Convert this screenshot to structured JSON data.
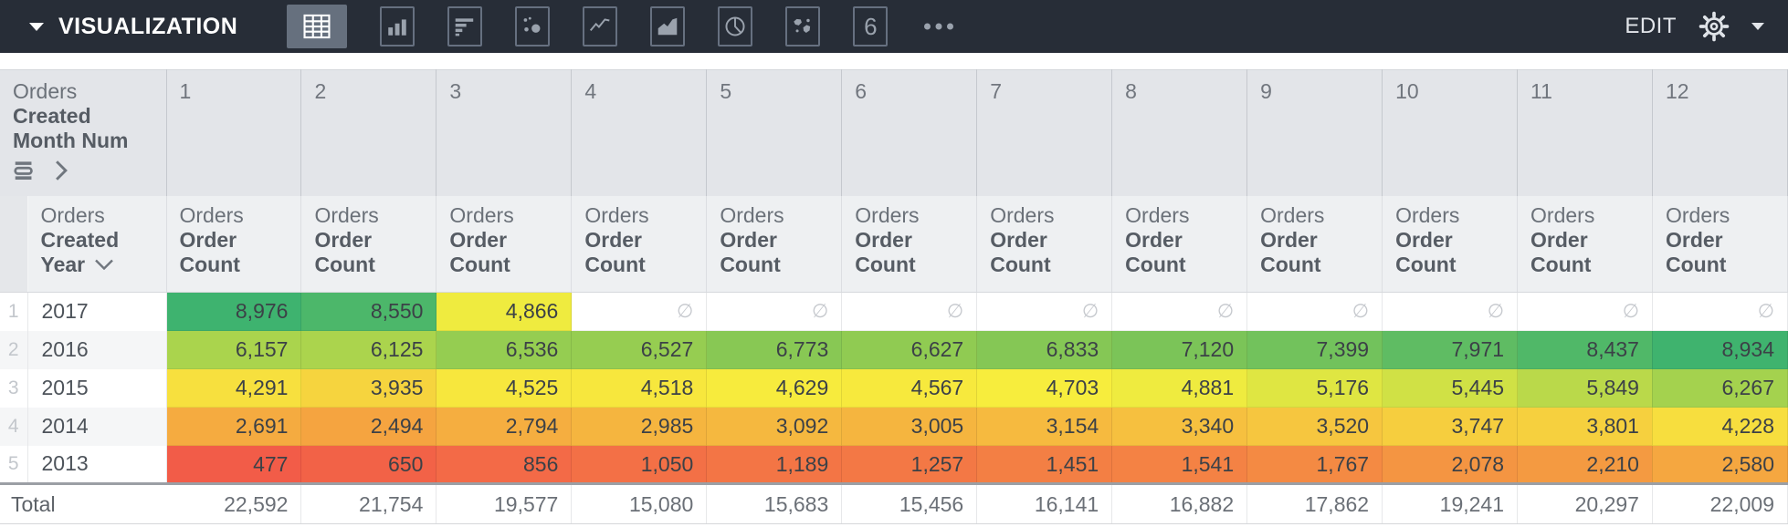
{
  "toolbar": {
    "title": "VISUALIZATION",
    "edit_label": "EDIT",
    "viz_types": [
      {
        "name": "table",
        "selected": true
      },
      {
        "name": "column-chart",
        "selected": false
      },
      {
        "name": "bar-chart",
        "selected": false
      },
      {
        "name": "scatter",
        "selected": false
      },
      {
        "name": "line-chart",
        "selected": false
      },
      {
        "name": "area-chart",
        "selected": false
      },
      {
        "name": "pie-chart",
        "selected": false
      },
      {
        "name": "map",
        "selected": false
      },
      {
        "name": "single-value",
        "selected": false,
        "glyph": "6"
      },
      {
        "name": "more",
        "selected": false
      }
    ]
  },
  "pivot": {
    "corner": {
      "table": "Orders",
      "field_line1": "Created",
      "field_line2": "Month Num"
    },
    "column_headers": [
      "1",
      "2",
      "3",
      "4",
      "5",
      "6",
      "7",
      "8",
      "9",
      "10",
      "11",
      "12"
    ],
    "row_header": {
      "table": "Orders",
      "field_line1": "Created",
      "field_line2": "Year"
    },
    "measure": {
      "table": "Orders",
      "field_line1": "Order",
      "field_line2": "Count"
    },
    "null_symbol": "∅",
    "heatmap": {
      "min": 477,
      "max": 8976,
      "stops": [
        "#f25c48",
        "#f5a840",
        "#f7ee3d",
        "#84c755",
        "#3eb36f"
      ]
    },
    "rows": [
      {
        "num": "1",
        "year": "2017",
        "values": [
          8976,
          8550,
          4866,
          null,
          null,
          null,
          null,
          null,
          null,
          null,
          null,
          null
        ]
      },
      {
        "num": "2",
        "year": "2016",
        "values": [
          6157,
          6125,
          6536,
          6527,
          6773,
          6627,
          6833,
          7120,
          7399,
          7971,
          8437,
          8934
        ]
      },
      {
        "num": "3",
        "year": "2015",
        "values": [
          4291,
          3935,
          4525,
          4518,
          4629,
          4567,
          4703,
          4881,
          5176,
          5445,
          5849,
          6267
        ]
      },
      {
        "num": "4",
        "year": "2014",
        "values": [
          2691,
          2494,
          2794,
          2985,
          3092,
          3005,
          3154,
          3340,
          3520,
          3747,
          3801,
          4228
        ]
      },
      {
        "num": "5",
        "year": "2013",
        "values": [
          477,
          650,
          856,
          1050,
          1189,
          1257,
          1451,
          1541,
          1767,
          2078,
          2210,
          2580
        ]
      }
    ],
    "total": {
      "label": "Total",
      "values": [
        22592,
        21754,
        19577,
        15080,
        15683,
        15456,
        16141,
        16882,
        17862,
        19241,
        20297,
        22009
      ]
    }
  }
}
